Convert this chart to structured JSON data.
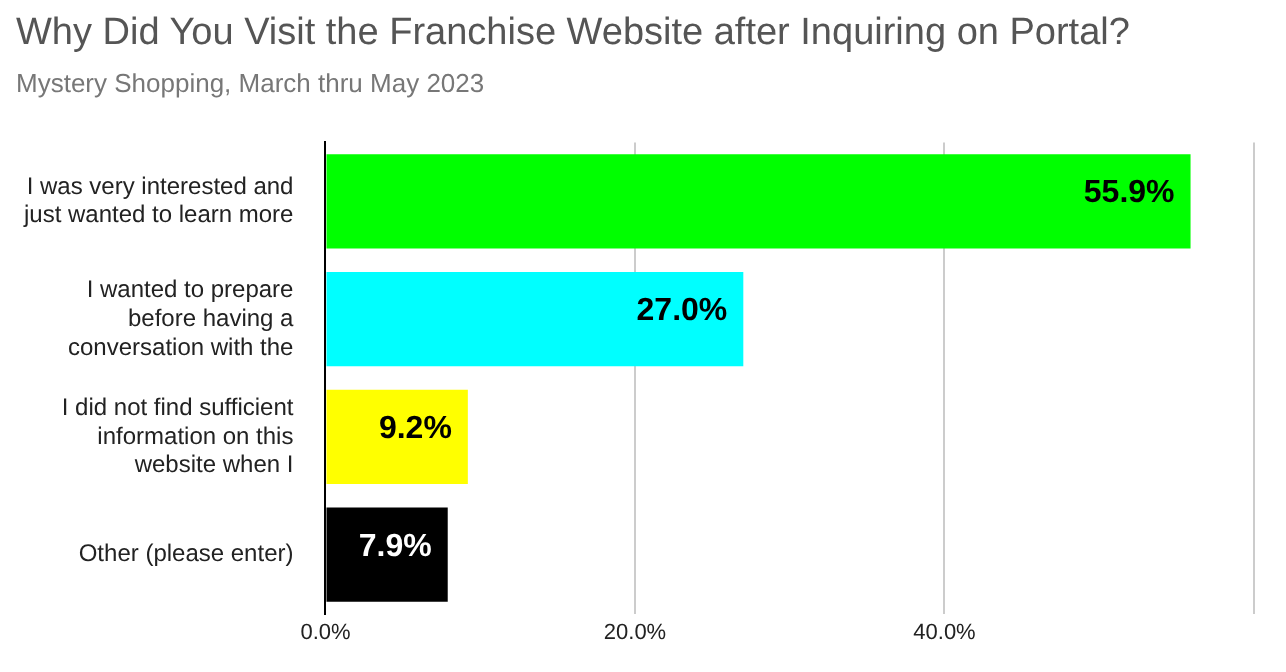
{
  "chart_data": {
    "type": "bar",
    "orientation": "horizontal",
    "title": "Why Did You Visit the Franchise Website after Inquiring on Portal?",
    "subtitle": "Mystery Shopping, March thru May 2023",
    "categories": [
      "I was very interested and just wanted to learn more",
      "I wanted to prepare before having a conversation with the",
      "I did not find sufficient information on this website when I",
      "Other (please enter)"
    ],
    "values": [
      55.9,
      27.0,
      9.2,
      7.9
    ],
    "colors": [
      "#00ff00",
      "#00ffff",
      "#ffff00",
      "#000000"
    ],
    "value_labels": [
      "55.9%",
      "27.0%",
      "9.2%",
      "7.9%"
    ],
    "xlim": [
      0,
      60
    ],
    "xticks": [
      {
        "value": 0,
        "label": "0.0%"
      },
      {
        "value": 20,
        "label": "20.0%"
      },
      {
        "value": 40,
        "label": "40.0%"
      },
      {
        "value": 60,
        "label": null
      }
    ],
    "grid": "x",
    "legend": false
  }
}
